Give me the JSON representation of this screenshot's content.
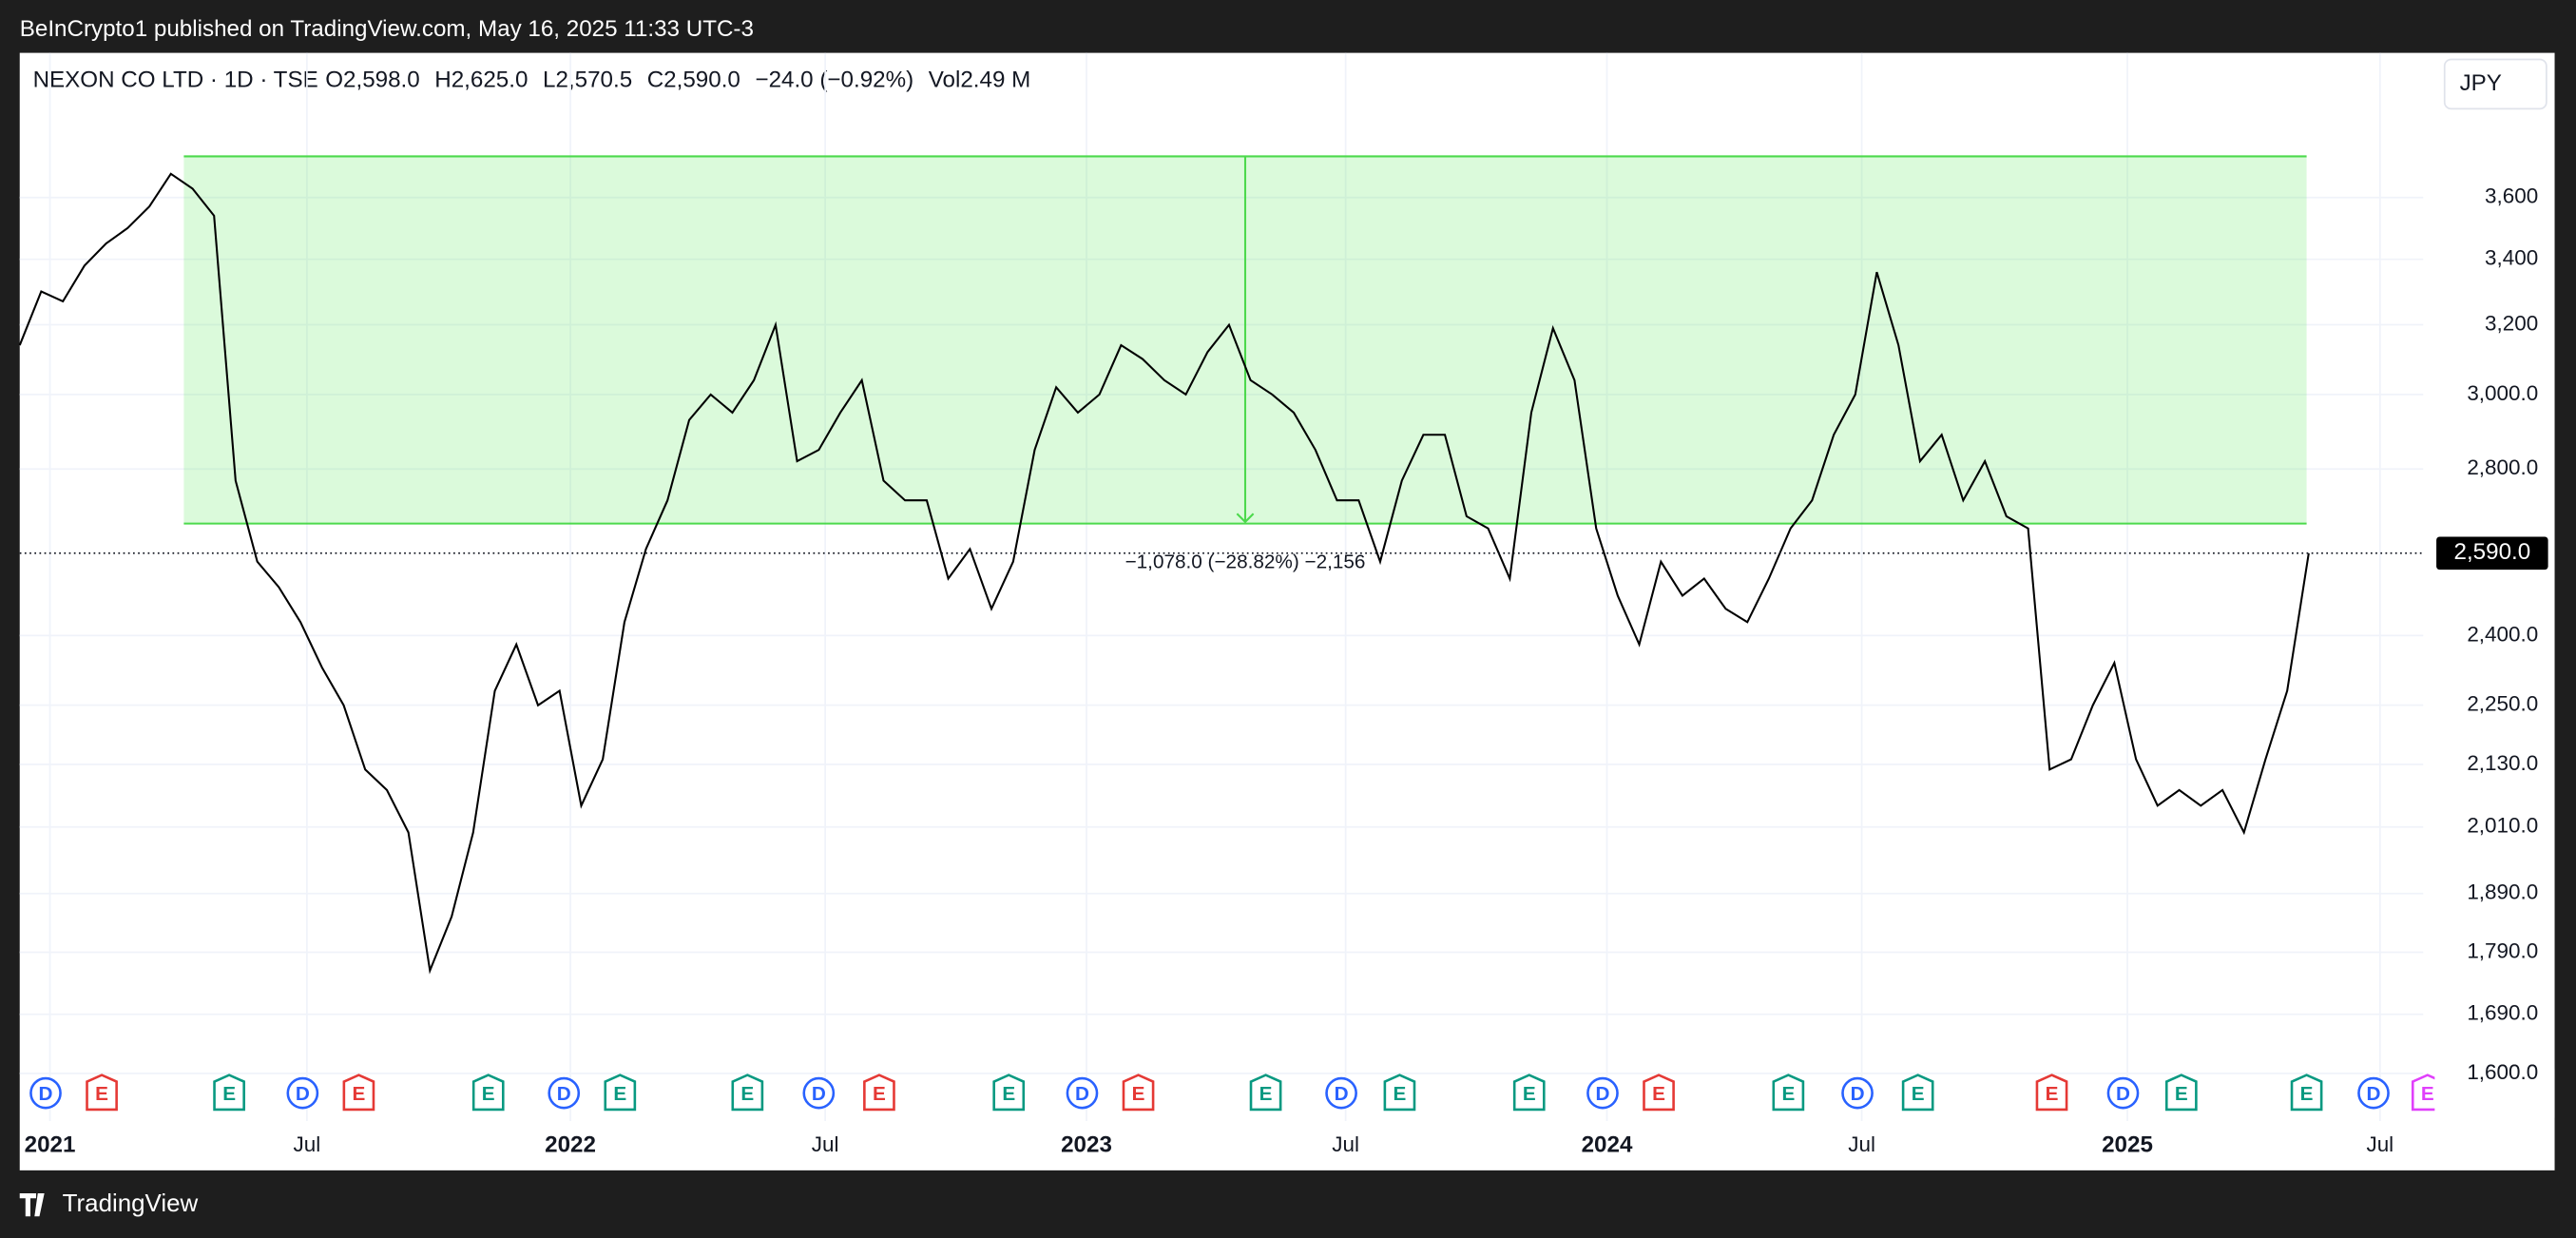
{
  "header": {
    "publisher": "BeInCrypto1 published on TradingView.com, May 16, 2025 11:33 UTC-3",
    "symbol": "NEXON CO LTD · 1D · TSE",
    "ohlc": [
      "O2,598.0",
      "H2,625.0",
      "L2,570.5",
      "C2,590.0",
      "−24.0 (−0.92%)",
      "Vol2.49 M"
    ],
    "currency": "JPY"
  },
  "footer": {
    "brand": "TradingView"
  },
  "chart_data": {
    "type": "line",
    "color": "#000000",
    "log_scale": true,
    "grid": true,
    "values": [
      3140,
      3300,
      3270,
      3380,
      3450,
      3500,
      3570,
      3680,
      3630,
      3540,
      2770,
      2570,
      2510,
      2430,
      2330,
      2250,
      2120,
      2080,
      2000,
      1760,
      1850,
      2000,
      2280,
      2380,
      2250,
      2280,
      2050,
      2140,
      2430,
      2600,
      2720,
      2930,
      3000,
      2950,
      3040,
      3200,
      2820,
      2850,
      2950,
      3040,
      2770,
      2720,
      2720,
      2530,
      2600,
      2460,
      2570,
      2850,
      3020,
      2950,
      3000,
      3140,
      3100,
      3040,
      3000,
      3120,
      3200,
      3040,
      3000,
      2950,
      2850,
      2720,
      2720,
      2570,
      2770,
      2890,
      2890,
      2680,
      2650,
      2530,
      2950,
      3190,
      3040,
      2650,
      2490,
      2380,
      2570,
      2490,
      2530,
      2460,
      2430,
      2530,
      2650,
      2720,
      2890,
      3000,
      3360,
      3140,
      2820,
      2890,
      2720,
      2820,
      2680,
      2650,
      2120,
      2140,
      2250,
      2340,
      2140,
      2050,
      2080,
      2050,
      2080,
      2000,
      2140,
      2280,
      2590
    ],
    "xlim": [
      0,
      111.3
    ],
    "xticks": [
      {
        "value": 1.4,
        "label": "2021"
      },
      {
        "value": 13.3,
        "label": "Jul"
      },
      {
        "value": 25.5,
        "label": "2022"
      },
      {
        "value": 37.3,
        "label": "Jul"
      },
      {
        "value": 49.4,
        "label": "2023"
      },
      {
        "value": 61.4,
        "label": "Jul"
      },
      {
        "value": 73.5,
        "label": "2024"
      },
      {
        "value": 85.3,
        "label": "Jul"
      },
      {
        "value": 97.6,
        "label": "2025"
      },
      {
        "value": 109.3,
        "label": "Jul"
      }
    ],
    "ylim": [
      1531,
      4116
    ],
    "yticks": [
      {
        "value": 1600,
        "label": "1,600.0"
      },
      {
        "value": 1690,
        "label": "1,690.0"
      },
      {
        "value": 1790,
        "label": "1,790.0"
      },
      {
        "value": 1890,
        "label": "1,890.0"
      },
      {
        "value": 2010,
        "label": "2,010.0"
      },
      {
        "value": 2130,
        "label": "2,130.0"
      },
      {
        "value": 2250,
        "label": "2,250.0"
      },
      {
        "value": 2400,
        "label": "2,400.0"
      },
      {
        "value": 2800,
        "label": "2,800.0"
      },
      {
        "value": 3000,
        "label": "3,000.0"
      },
      {
        "value": 3200,
        "label": "3,200"
      },
      {
        "value": 3400,
        "label": "3,400"
      },
      {
        "value": 3600,
        "label": "3,600"
      }
    ],
    "last_price": {
      "value": 2590,
      "label": "2,590.0"
    },
    "range": {
      "top": 3740,
      "bottom": 2662,
      "start": 7.6,
      "end": 105.9,
      "label": "−1,078.0 (−28.82%) −2,156"
    },
    "events": [
      {
        "label": "D",
        "color": "#2962ff",
        "x": 1.2
      },
      {
        "label": "E",
        "color": "#e53935",
        "x": 3.8
      },
      {
        "label": "E",
        "color": "#089981",
        "x": 9.7
      },
      {
        "label": "D",
        "color": "#2962ff",
        "x": 13.1
      },
      {
        "label": "E",
        "color": "#e53935",
        "x": 15.7
      },
      {
        "label": "E",
        "color": "#089981",
        "x": 21.7
      },
      {
        "label": "D",
        "color": "#2962ff",
        "x": 25.2
      },
      {
        "label": "E",
        "color": "#089981",
        "x": 27.8
      },
      {
        "label": "E",
        "color": "#089981",
        "x": 33.7
      },
      {
        "label": "D",
        "color": "#2962ff",
        "x": 37.0
      },
      {
        "label": "E",
        "color": "#e53935",
        "x": 39.8
      },
      {
        "label": "E",
        "color": "#089981",
        "x": 45.8
      },
      {
        "label": "D",
        "color": "#2962ff",
        "x": 49.2
      },
      {
        "label": "E",
        "color": "#e53935",
        "x": 51.8
      },
      {
        "label": "E",
        "color": "#089981",
        "x": 57.7
      },
      {
        "label": "D",
        "color": "#2962ff",
        "x": 61.2
      },
      {
        "label": "E",
        "color": "#089981",
        "x": 63.9
      },
      {
        "label": "E",
        "color": "#089981",
        "x": 69.9
      },
      {
        "label": "D",
        "color": "#2962ff",
        "x": 73.3
      },
      {
        "label": "E",
        "color": "#e53935",
        "x": 75.9
      },
      {
        "label": "E",
        "color": "#089981",
        "x": 81.9
      },
      {
        "label": "D",
        "color": "#2962ff",
        "x": 85.1
      },
      {
        "label": "E",
        "color": "#089981",
        "x": 87.9
      },
      {
        "label": "E",
        "color": "#e53935",
        "x": 94.1
      },
      {
        "label": "D",
        "color": "#2962ff",
        "x": 97.4
      },
      {
        "label": "E",
        "color": "#089981",
        "x": 100.1
      },
      {
        "label": "E",
        "color": "#089981",
        "x": 105.9
      },
      {
        "label": "D",
        "color": "#2962ff",
        "x": 109.0
      },
      {
        "label": "E",
        "color": "#e040fb",
        "x": 111.5
      }
    ]
  }
}
